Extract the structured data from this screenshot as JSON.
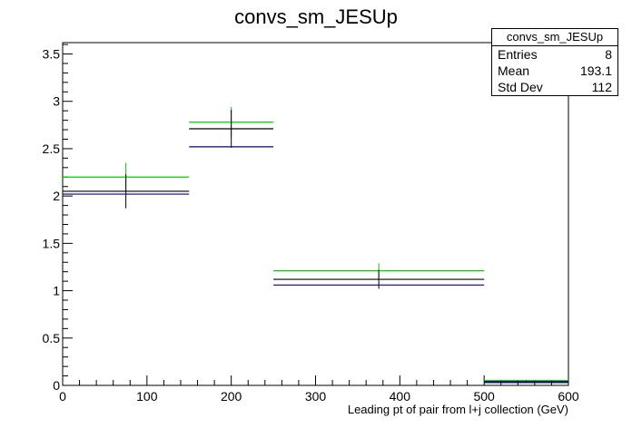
{
  "chart_data": {
    "type": "histogram",
    "title": "convs_sm_JESUp",
    "xlabel": "Leading pt of pair from l+j collection (GeV)",
    "ylabel": "",
    "xlim": [
      0,
      600
    ],
    "ylim": [
      0,
      3.62
    ],
    "x_ticks": [
      0,
      100,
      200,
      300,
      400,
      500,
      600
    ],
    "y_ticks": [
      0,
      0.5,
      1,
      1.5,
      2,
      2.5,
      3,
      3.5
    ],
    "x_tick_labels": [
      "0",
      "100",
      "200",
      "300",
      "400",
      "500",
      "600"
    ],
    "y_tick_labels": [
      "0",
      "0.5",
      "1",
      "1.5",
      "2",
      "2.5",
      "3",
      "3.5"
    ],
    "bins": [
      {
        "low": 0,
        "high": 150,
        "center": 75
      },
      {
        "low": 150,
        "high": 250,
        "center": 200
      },
      {
        "low": 250,
        "high": 500,
        "center": 375
      },
      {
        "low": 500,
        "high": 600,
        "center": 550
      }
    ],
    "series": [
      {
        "color": "#00cc00",
        "values": [
          2.2,
          2.78,
          1.21,
          0.05
        ],
        "errors": [
          0.15,
          0.16,
          0.08,
          0.01
        ]
      },
      {
        "color": "#000000",
        "values": [
          2.05,
          2.71,
          1.12,
          0.04
        ],
        "errors": [
          0.18,
          0.2,
          0.1,
          0.01
        ]
      },
      {
        "color": "#000099",
        "values": [
          2.02,
          2.52,
          1.06,
          0.03
        ],
        "errors": [
          0.0,
          0.0,
          0.0,
          0.0
        ]
      }
    ],
    "grid": false,
    "legend": "none"
  },
  "stats": {
    "title": "convs_sm_JESUp",
    "rows": [
      {
        "label": "Entries",
        "value": "8"
      },
      {
        "label": "Mean",
        "value": "193.1"
      },
      {
        "label": "Std Dev",
        "value": "112"
      }
    ]
  }
}
